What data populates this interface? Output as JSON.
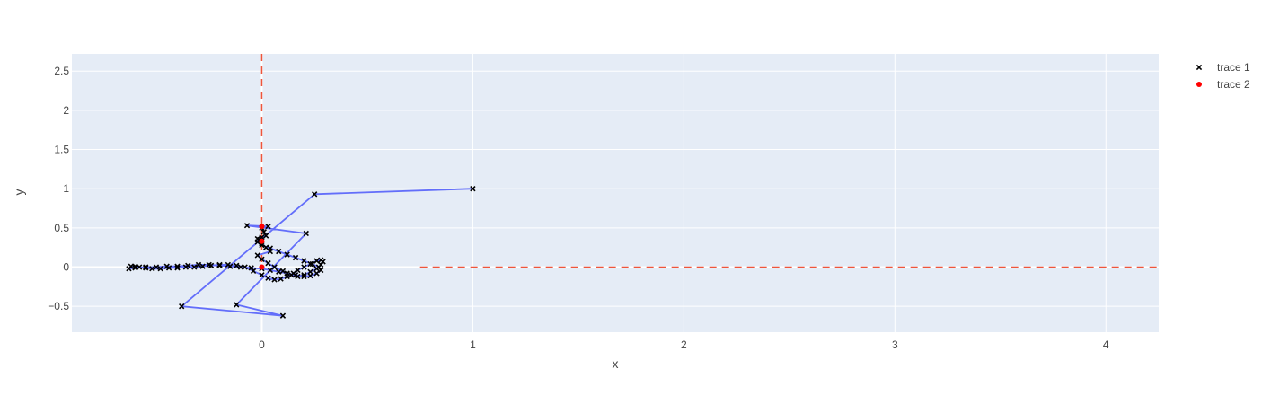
{
  "chart_data": {
    "type": "scatter",
    "xlabel": "x",
    "ylabel": "y",
    "xlim": [
      -0.9,
      4.25
    ],
    "ylim": [
      -0.83,
      2.72
    ],
    "x_ticks": [
      0,
      1,
      2,
      3,
      4
    ],
    "y_ticks": [
      -0.5,
      0,
      0.5,
      1,
      1.5,
      2,
      2.5
    ],
    "x_tick_labels": [
      "0",
      "1",
      "2",
      "3",
      "4"
    ],
    "y_tick_labels": [
      "−0.5",
      "0",
      "0.5",
      "1",
      "1.5",
      "2",
      "2.5"
    ],
    "grid": true,
    "legend_position": "top-right",
    "colors": {
      "plot_bg": "#e5ecf6",
      "grid": "#ffffff",
      "trace_line": "#636efa",
      "trace_marker": "#000000",
      "trace2_marker": "#ff0000",
      "ref_line": "#ef553b"
    },
    "series": [
      {
        "name": "trace 1",
        "mode": "lines+markers",
        "marker_symbol": "x",
        "x": [
          1.0,
          0.25,
          -0.38,
          0.1,
          -0.12,
          0.21,
          -0.07,
          0.03,
          0.0,
          0.01,
          0.02,
          -0.01,
          0.0,
          0.02,
          0.04,
          -0.02,
          0.0,
          0.03,
          0.06,
          0.1,
          0.14,
          0.17,
          0.2,
          0.23,
          0.26,
          0.28,
          0.29,
          0.28,
          0.26,
          0.23,
          0.2,
          0.17,
          0.15,
          0.12,
          0.09,
          0.06,
          0.03,
          0.0,
          -0.04,
          -0.08,
          -0.12,
          -0.16,
          -0.2,
          -0.24,
          -0.28,
          -0.32,
          -0.36,
          -0.4,
          -0.44,
          -0.48,
          -0.52,
          -0.55,
          -0.58,
          -0.6,
          -0.62,
          -0.63,
          -0.6,
          -0.55,
          -0.5,
          -0.45,
          -0.4,
          -0.35,
          -0.3,
          -0.25,
          -0.2,
          -0.15,
          -0.1,
          -0.05,
          0.0,
          0.04,
          0.08,
          0.12,
          0.16,
          0.2,
          0.23,
          0.26,
          0.28,
          0.27,
          0.24,
          0.2,
          0.16,
          0.12,
          0.08,
          0.04,
          0.0,
          -0.02,
          -0.02,
          0.0
        ],
        "y": [
          1.0,
          0.93,
          -0.5,
          -0.62,
          -0.48,
          0.43,
          0.53,
          0.52,
          0.5,
          0.45,
          0.4,
          0.35,
          0.3,
          0.25,
          0.2,
          0.15,
          0.1,
          0.05,
          0.0,
          -0.05,
          -0.1,
          -0.12,
          -0.1,
          -0.06,
          -0.02,
          0.03,
          0.07,
          0.09,
          0.08,
          0.04,
          0.0,
          -0.04,
          -0.08,
          -0.12,
          -0.15,
          -0.16,
          -0.14,
          -0.1,
          -0.05,
          0.0,
          0.02,
          0.03,
          0.03,
          0.02,
          0.01,
          0.0,
          0.0,
          -0.01,
          -0.01,
          -0.02,
          -0.02,
          -0.01,
          0.0,
          0.01,
          0.01,
          -0.02,
          -0.01,
          0.0,
          0.0,
          0.01,
          0.01,
          0.02,
          0.03,
          0.03,
          0.02,
          0.01,
          0.0,
          -0.01,
          -0.02,
          -0.04,
          -0.06,
          -0.08,
          -0.1,
          -0.12,
          -0.11,
          -0.08,
          -0.04,
          0.0,
          0.04,
          0.08,
          0.12,
          0.16,
          0.2,
          0.24,
          0.28,
          0.32,
          0.36,
          0.38
        ]
      },
      {
        "name": "trace 2",
        "mode": "markers",
        "marker_symbol": "circle",
        "x": [
          0,
          0,
          0
        ],
        "y": [
          0,
          0.33,
          0.52
        ]
      }
    ],
    "reference_lines": [
      {
        "orientation": "vertical",
        "x": 0,
        "y_range": [
          0,
          2.72
        ],
        "style": "dashed"
      },
      {
        "orientation": "horizontal",
        "y": 0,
        "x_range": [
          0.75,
          4.25
        ],
        "style": "dashed"
      }
    ]
  }
}
